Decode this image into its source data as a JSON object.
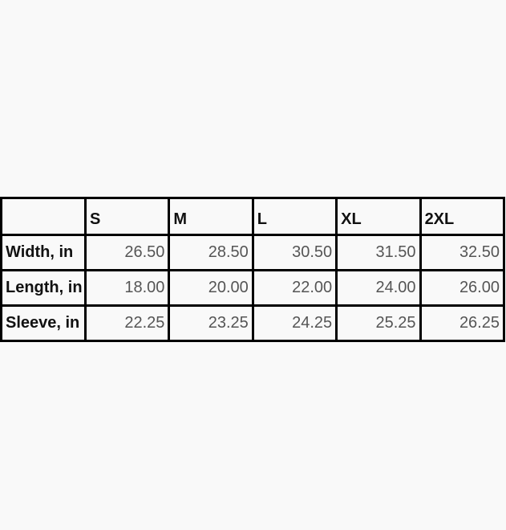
{
  "table": {
    "columns": [
      "S",
      "M",
      "L",
      "XL",
      "2XL"
    ],
    "rows": [
      {
        "label": "Width, in",
        "values": [
          "26.50",
          "28.50",
          "30.50",
          "31.50",
          "32.50"
        ]
      },
      {
        "label": "Length, in",
        "values": [
          "18.00",
          "20.00",
          "22.00",
          "24.00",
          "26.00"
        ]
      },
      {
        "label": "Sleeve, in",
        "values": [
          "22.25",
          "23.25",
          "24.25",
          "25.25",
          "26.25"
        ]
      }
    ]
  }
}
